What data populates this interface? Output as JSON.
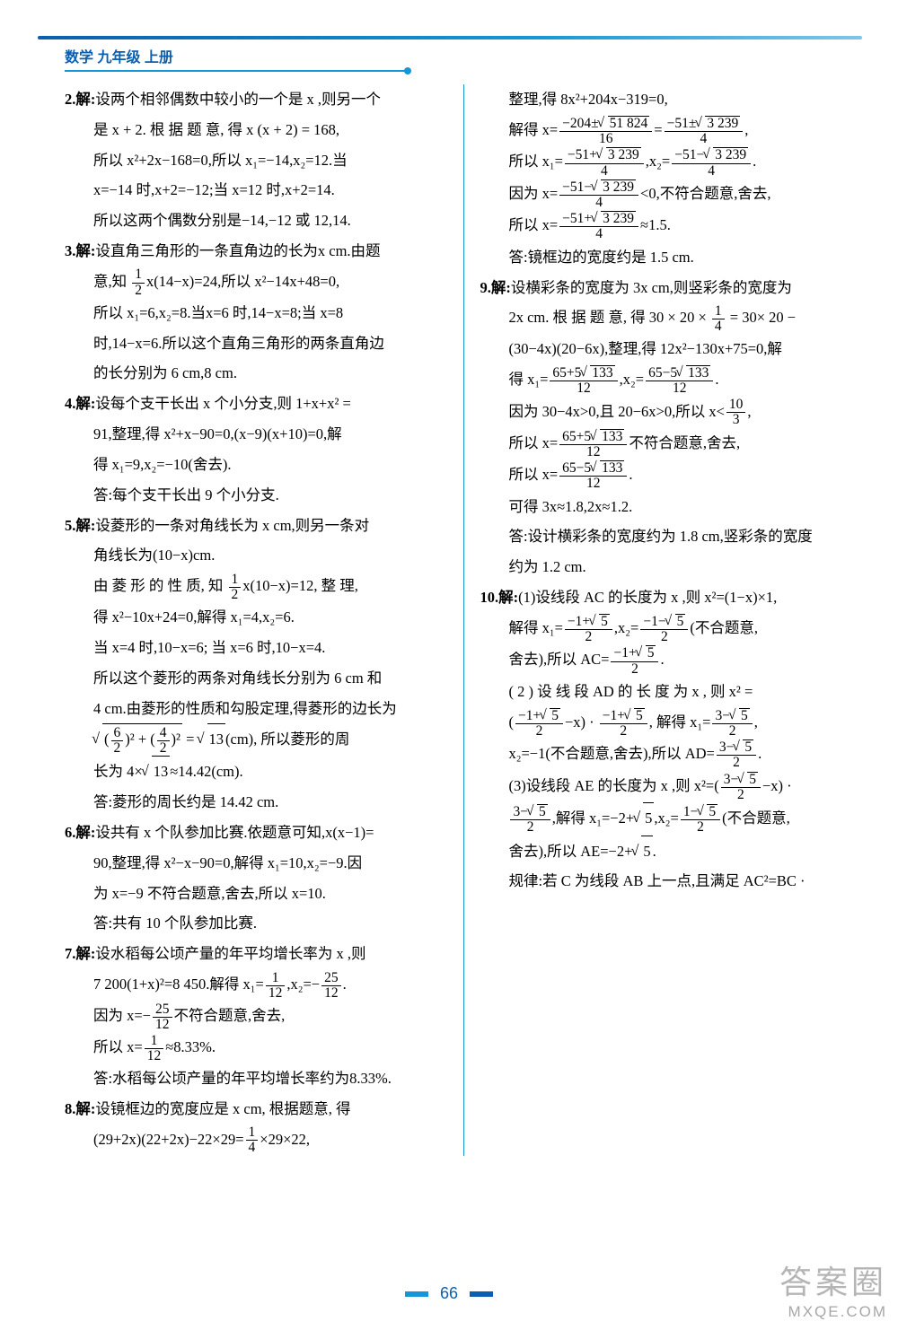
{
  "header": {
    "title": "数学 九年级 上册",
    "accent_color": "#0a5fb0",
    "line_gradient": [
      "#0a5fb0",
      "#1596d6",
      "#7ec6e8"
    ]
  },
  "footer": {
    "page_number": "66",
    "bar_color_left": "#1596d6",
    "bar_color_right": "#0a5fb0"
  },
  "watermark": {
    "line1": "答案圈",
    "line2": "MXQE.COM"
  },
  "left_column": [
    {
      "n": "2.解:",
      "t": "设两个相邻偶数中较小的一个是 x ,则另一个"
    },
    {
      "t": "是 x + 2. 根 据 题 意, 得 x (x + 2) = 168,"
    },
    {
      "t": "所以 x²+2x−168=0,所以 x₁=−14,x₂=12.当"
    },
    {
      "t": "x=−14 时,x+2=−12;当 x=12 时,x+2=14."
    },
    {
      "t": "所以这两个偶数分别是−14,−12 或 12,14."
    },
    {
      "n": "3.解:",
      "t": "设直角三角形的一条直角边的长为x cm.由题"
    },
    {
      "t": "意,知 ",
      "frac": {
        "num": "1",
        "den": "2"
      },
      "t2": "x(14−x)=24,所以 x²−14x+48=0,"
    },
    {
      "t": "所以 x₁=6,x₂=8.当x=6 时,14−x=8;当 x=8"
    },
    {
      "t": "时,14−x=6.所以这个直角三角形的两条直角边"
    },
    {
      "t": "的长分别为 6 cm,8 cm."
    },
    {
      "n": "4.解:",
      "t": "设每个支干长出 x 个小分支,则 1+x+x² ="
    },
    {
      "t": "91,整理,得 x²+x−90=0,(x−9)(x+10)=0,解"
    },
    {
      "t": "得 x₁=9,x₂=−10(舍去)."
    },
    {
      "t": "答:每个支干长出 9 个小分支."
    },
    {
      "n": "5.解:",
      "t": "设菱形的一条对角线长为 x cm,则另一条对"
    },
    {
      "t": "角线长为(10−x)cm."
    },
    {
      "t": "由 菱 形 的 性 质, 知 ",
      "frac": {
        "num": "1",
        "den": "2"
      },
      "t2": "x(10−x)=12, 整 理,"
    },
    {
      "t": "得 x²−10x+24=0,解得 x₁=4,x₂=6."
    },
    {
      "t": "当 x=4 时,10−x=6; 当 x=6 时,10−x=4."
    },
    {
      "t": "所以这个菱形的两条对角线长分别为 6 cm 和"
    },
    {
      "t": "4 cm.由菱形的性质和勾股定理,得菱形的边长为"
    },
    {
      "t_html": "<span class='sqrt'><span class='rad'>(<span class='frac'><span class='num'>6</span><span class='den'>2</span></span>)² + (<span class='frac'><span class='num'>4</span><span class='den'>2</span></span>)²</span></span> = <span class='sqrt'><span class='rad'>13</span></span>(cm), 所以菱形的周"
    },
    {
      "t_html": "长为 4×<span class='sqrt'><span class='rad'>13</span></span>≈14.42(cm)."
    },
    {
      "t": "答:菱形的周长约是 14.42 cm."
    },
    {
      "n": "6.解:",
      "t": "设共有 x 个队参加比赛.依题意可知,x(x−1)="
    },
    {
      "t": "90,整理,得 x²−x−90=0,解得 x₁=10,x₂=−9.因"
    },
    {
      "t": "为 x=−9 不符合题意,舍去,所以 x=10."
    },
    {
      "t": "答:共有 10 个队参加比赛."
    },
    {
      "n": "7.解:",
      "t": "设水稻每公顷产量的年平均增长率为 x ,则"
    },
    {
      "t_html": "7 200(1+x)²=8 450.解得 x₁=<span class='frac'><span class='num'>1</span><span class='den'>12</span></span>,x₂=−<span class='frac'><span class='num'>25</span><span class='den'>12</span></span>."
    },
    {
      "t_html": "因为 x=−<span class='frac'><span class='num'>25</span><span class='den'>12</span></span>不符合题意,舍去,"
    },
    {
      "t_html": "所以 x=<span class='frac'><span class='num'>1</span><span class='den'>12</span></span>≈8.33%."
    },
    {
      "t": "答:水稻每公顷产量的年平均增长率约为8.33%."
    },
    {
      "n": "8.解:",
      "t": "设镜框边的宽度应是 x cm, 根据题意, 得"
    },
    {
      "t_html": "(29+2x)(22+2x)−22×29=<span class='frac'><span class='num'>1</span><span class='den'>4</span></span>×29×22,"
    }
  ],
  "right_column": [
    {
      "t": "整理,得 8x²+204x−319=0,"
    },
    {
      "t_html": "解得 x=<span class='frac'><span class='num'>−204±<span class='sqrt'><span class='rad'>51 824</span></span></span><span class='den'>16</span></span>=<span class='frac'><span class='num'>−51±<span class='sqrt'><span class='rad'>3 239</span></span></span><span class='den'>4</span></span>,"
    },
    {
      "t_html": "所以 x₁=<span class='frac'><span class='num'>−51+<span class='sqrt'><span class='rad'>3 239</span></span></span><span class='den'>4</span></span>,x₂=<span class='frac'><span class='num'>−51−<span class='sqrt'><span class='rad'>3 239</span></span></span><span class='den'>4</span></span>."
    },
    {
      "t_html": "因为 x=<span class='frac'><span class='num'>−51−<span class='sqrt'><span class='rad'>3 239</span></span></span><span class='den'>4</span></span>&lt;0,不符合题意,舍去,"
    },
    {
      "t_html": "所以 x=<span class='frac'><span class='num'>−51+<span class='sqrt'><span class='rad'>3 239</span></span></span><span class='den'>4</span></span>≈1.5."
    },
    {
      "t": "答:镜框边的宽度约是 1.5 cm."
    },
    {
      "n": "9.解:",
      "t": "设横彩条的宽度为 3x cm,则竖彩条的宽度为"
    },
    {
      "t_html": "2x cm. 根 据 题 意, 得 30 × 20 × <span class='frac'><span class='num'>1</span><span class='den'>4</span></span> = 30× 20 −"
    },
    {
      "t": "(30−4x)(20−6x),整理,得 12x²−130x+75=0,解"
    },
    {
      "t_html": "得 x₁=<span class='frac'><span class='num'>65+5<span class='sqrt'><span class='rad'>133</span></span></span><span class='den'>12</span></span>,x₂=<span class='frac'><span class='num'>65−5<span class='sqrt'><span class='rad'>133</span></span></span><span class='den'>12</span></span>."
    },
    {
      "t_html": "因为 30−4x&gt;0,且 20−6x&gt;0,所以 x&lt;<span class='frac'><span class='num'>10</span><span class='den'>3</span></span>,"
    },
    {
      "t_html": "所以 x=<span class='frac'><span class='num'>65+5<span class='sqrt'><span class='rad'>133</span></span></span><span class='den'>12</span></span>不符合题意,舍去,"
    },
    {
      "t_html": "所以 x=<span class='frac'><span class='num'>65−5<span class='sqrt'><span class='rad'>133</span></span></span><span class='den'>12</span></span>."
    },
    {
      "t": "可得 3x≈1.8,2x≈1.2."
    },
    {
      "t": "答:设计横彩条的宽度约为 1.8 cm,竖彩条的宽度"
    },
    {
      "t": "约为 1.2 cm."
    },
    {
      "n": "10.解:",
      "t": "(1)设线段 AC 的长度为 x ,则 x²=(1−x)×1,"
    },
    {
      "t_html": "解得 x₁=<span class='frac'><span class='num'>−1+<span class='sqrt'><span class='rad'>5</span></span></span><span class='den'>2</span></span>,x₂=<span class='frac'><span class='num'>−1−<span class='sqrt'><span class='rad'>5</span></span></span><span class='den'>2</span></span>(不合题意,"
    },
    {
      "t_html": "舍去),所以 AC=<span class='frac'><span class='num'>−1+<span class='sqrt'><span class='rad'>5</span></span></span><span class='den'>2</span></span>."
    },
    {
      "t": "( 2 ) 设 线 段 AD 的 长 度 为 x , 则 x² ="
    },
    {
      "t_html": "(<span class='frac'><span class='num'>−1+<span class='sqrt'><span class='rad'>5</span></span></span><span class='den'>2</span></span>−x) · <span class='frac'><span class='num'>−1+<span class='sqrt'><span class='rad'>5</span></span></span><span class='den'>2</span></span>, 解得 x₁=<span class='frac'><span class='num'>3−<span class='sqrt'><span class='rad'>5</span></span></span><span class='den'>2</span></span>,"
    },
    {
      "t_html": "x₂=−1(不合题意,舍去),所以 AD=<span class='frac'><span class='num'>3−<span class='sqrt'><span class='rad'>5</span></span></span><span class='den'>2</span></span>."
    },
    {
      "t_html": "(3)设线段 AE 的长度为 x ,则 x²=(<span class='frac'><span class='num'>3−<span class='sqrt'><span class='rad'>5</span></span></span><span class='den'>2</span></span>−x) ·"
    },
    {
      "t_html": "<span class='frac'><span class='num'>3−<span class='sqrt'><span class='rad'>5</span></span></span><span class='den'>2</span></span>,解得 x₁=−2+<span class='sqrt'><span class='rad'>5</span></span>,x₂=<span class='frac'><span class='num'>1−<span class='sqrt'><span class='rad'>5</span></span></span><span class='den'>2</span></span>(不合题意,"
    },
    {
      "t_html": "舍去),所以 AE=−2+<span class='sqrt'><span class='rad'>5</span></span>."
    },
    {
      "t": "规律:若 C 为线段 AB 上一点,且满足 AC²=BC ·"
    }
  ]
}
